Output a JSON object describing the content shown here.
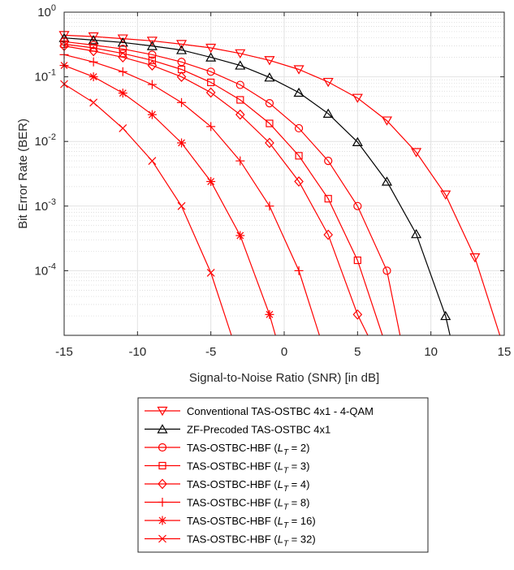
{
  "chart_data": {
    "type": "line",
    "xlabel": "Signal-to-Noise Ratio (SNR) [in dB]",
    "ylabel": "Bit Error Rate (BER)",
    "xlim": [
      -15,
      15
    ],
    "ylim": [
      1e-05,
      1
    ],
    "yscale": "log",
    "grid": true,
    "minor_grid": true,
    "legend_position": "below-plot",
    "x_ticks": [
      "-15",
      "-10",
      "-5",
      "0",
      "5",
      "10",
      "15"
    ],
    "y_ticks": [
      {
        "base": "10",
        "exp": "0"
      },
      {
        "base": "10",
        "exp": "-1"
      },
      {
        "base": "10",
        "exp": "-2"
      },
      {
        "base": "10",
        "exp": "-3"
      },
      {
        "base": "10",
        "exp": "-4"
      }
    ],
    "series": [
      {
        "name": "Conventional TAS-OSTBC 4x1 - 4-QAM",
        "color": "#ff0000",
        "marker": "triangle-down",
        "x": [
          -15,
          -13,
          -11,
          -9,
          -7,
          -5,
          -3,
          -1,
          1,
          3,
          5,
          7,
          9,
          11,
          13,
          14.7
        ],
        "y": [
          0.44,
          0.42,
          0.39,
          0.36,
          0.32,
          0.28,
          0.23,
          0.18,
          0.13,
          0.083,
          0.047,
          0.021,
          0.0068,
          0.0015,
          0.00016,
          1e-05
        ]
      },
      {
        "name": "ZF-Precoded TAS-OSTBC 4x1",
        "color": "#000000",
        "marker": "triangle-up",
        "x": [
          -15,
          -13,
          -11,
          -9,
          -7,
          -5,
          -3,
          -1,
          1,
          3,
          5,
          7,
          9,
          11,
          11.3
        ],
        "y": [
          0.4,
          0.37,
          0.34,
          0.3,
          0.26,
          0.2,
          0.15,
          0.098,
          0.057,
          0.027,
          0.0098,
          0.0024,
          0.00037,
          2e-05,
          1e-05
        ]
      },
      {
        "name": "TAS-OSTBC-HBF",
        "subscript": "T",
        "suffix": " = 2)",
        "color": "#ff0000",
        "marker": "circle",
        "x": [
          -15,
          -13,
          -11,
          -9,
          -7,
          -5,
          -3,
          -1,
          1,
          3,
          5,
          7,
          7.9
        ],
        "y": [
          0.35,
          0.31,
          0.27,
          0.22,
          0.17,
          0.12,
          0.075,
          0.039,
          0.016,
          0.005,
          0.001,
          0.0001,
          1e-05
        ]
      },
      {
        "name": "TAS-OSTBC-HBF",
        "subscript": "T",
        "suffix": " = 3)",
        "color": "#ff0000",
        "marker": "square",
        "x": [
          -15,
          -13,
          -11,
          -9,
          -7,
          -5,
          -3,
          -1,
          1,
          3,
          5,
          6.7
        ],
        "y": [
          0.32,
          0.28,
          0.23,
          0.18,
          0.13,
          0.082,
          0.044,
          0.019,
          0.006,
          0.0013,
          0.000145,
          1e-05
        ]
      },
      {
        "name": "TAS-OSTBC-HBF",
        "subscript": "T",
        "suffix": " = 4)",
        "color": "#ff0000",
        "marker": "diamond",
        "x": [
          -15,
          -13,
          -11,
          -9,
          -7,
          -5,
          -3,
          -1,
          1,
          3,
          5,
          5.7
        ],
        "y": [
          0.3,
          0.25,
          0.2,
          0.15,
          0.1,
          0.057,
          0.026,
          0.0095,
          0.0024,
          0.00036,
          2.1e-05,
          1e-05
        ]
      },
      {
        "name": "TAS-OSTBC-HBF",
        "subscript": "T",
        "suffix": " = 8)",
        "color": "#ff0000",
        "marker": "plus",
        "x": [
          -15,
          -13,
          -11,
          -9,
          -7,
          -5,
          -3,
          -1,
          1,
          2.4
        ],
        "y": [
          0.22,
          0.17,
          0.12,
          0.076,
          0.04,
          0.017,
          0.005,
          0.001,
          0.0001,
          1e-05
        ]
      },
      {
        "name": "TAS-OSTBC-HBF",
        "subscript": "T",
        "suffix": " = 16)",
        "color": "#ff0000",
        "marker": "asterisk",
        "x": [
          -15,
          -13,
          -11,
          -9,
          -7,
          -5,
          -3,
          -1,
          -0.6
        ],
        "y": [
          0.15,
          0.1,
          0.056,
          0.026,
          0.0095,
          0.0024,
          0.00035,
          2.1e-05,
          1e-05
        ]
      },
      {
        "name": "TAS-OSTBC-HBF",
        "subscript": "T",
        "suffix": " = 32)",
        "color": "#ff0000",
        "marker": "x",
        "x": [
          -15,
          -13,
          -11,
          -9,
          -7,
          -5,
          -3.6
        ],
        "y": [
          0.077,
          0.04,
          0.016,
          0.005,
          0.001,
          9.3e-05,
          1e-05
        ]
      }
    ],
    "legend_label_prefix": "TAS-OSTBC-HBF (",
    "legend_label_symbol": "L"
  }
}
